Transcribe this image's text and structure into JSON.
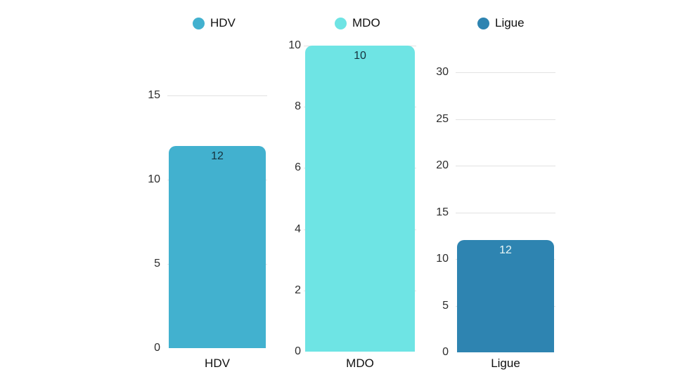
{
  "legend": {
    "items": [
      {
        "label": "HDV",
        "color": "#42b1cf"
      },
      {
        "label": "MDO",
        "color": "#6ee4e4"
      },
      {
        "label": "Ligue",
        "color": "#2e84b1"
      }
    ]
  },
  "theme": {
    "background": "#ffffff",
    "grid_color": "#e2e2e2",
    "tick_label_color": "#2d2d2d",
    "axis_label_color": "#111111"
  },
  "chart_data": [
    {
      "type": "bar",
      "title": "",
      "categories": [
        "HDV"
      ],
      "values": [
        12
      ],
      "value_labels": [
        "12"
      ],
      "xlabel": "HDV",
      "ylabel": "",
      "ylim": [
        0,
        15
      ],
      "yticks": [
        0,
        5,
        10,
        15
      ],
      "grid": true,
      "legend_position": "top",
      "bar_color": "#42b1cf",
      "value_label_color": "#16323d"
    },
    {
      "type": "bar",
      "title": "",
      "categories": [
        "MDO"
      ],
      "values": [
        10
      ],
      "value_labels": [
        "10"
      ],
      "xlabel": "MDO",
      "ylabel": "",
      "ylim": [
        0,
        10
      ],
      "yticks": [
        0,
        2,
        4,
        6,
        8,
        10
      ],
      "grid": true,
      "legend_position": "top",
      "bar_color": "#6ee4e4",
      "value_label_color": "#16323d"
    },
    {
      "type": "bar",
      "title": "",
      "categories": [
        "Ligue"
      ],
      "values": [
        12
      ],
      "value_labels": [
        "12"
      ],
      "xlabel": "Ligue",
      "ylabel": "",
      "ylim": [
        0,
        30
      ],
      "yticks": [
        0,
        5,
        10,
        15,
        20,
        25,
        30
      ],
      "grid": true,
      "legend_position": "top",
      "bar_color": "#2e84b1",
      "value_label_color": "#eaf7f6"
    }
  ]
}
